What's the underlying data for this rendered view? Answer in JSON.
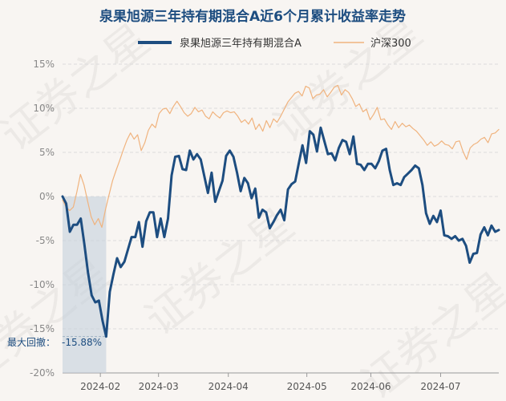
{
  "chart_data": {
    "type": "line",
    "title": "泉果旭源三年持有期混合A近6个月累计收益率走势",
    "watermark": "证券之星",
    "ylim": [
      -20,
      15
    ],
    "yticks": [
      15,
      10,
      5,
      0,
      -5,
      -10,
      -15,
      -20
    ],
    "ytick_labels": [
      "15%",
      "10%",
      "5%",
      "0%",
      "-5%",
      "-10%",
      "-15%",
      "-20%"
    ],
    "x_range": [
      0,
      150
    ],
    "xticks": [
      {
        "label": "2024-02",
        "x": 13
      },
      {
        "label": "2024-03",
        "x": 33
      },
      {
        "label": "2024-04",
        "x": 57
      },
      {
        "label": "2024-05",
        "x": 84
      },
      {
        "label": "2024-06",
        "x": 106
      },
      {
        "label": "2024-07",
        "x": 130
      }
    ],
    "annotation": {
      "label": "最大回撤：",
      "value_text": "-15.88%",
      "x_start": 0,
      "x_end": 15,
      "value": -15.88
    },
    "series": [
      {
        "name": "泉果旭源三年持有期混合A",
        "color": "#1d4d80",
        "values": [
          0,
          -0.8,
          -4,
          -3.2,
          -3.2,
          -2.5,
          -5.4,
          -8.6,
          -11.2,
          -12,
          -11.8,
          -14.1,
          -15.88,
          -10.8,
          -8.8,
          -7,
          -8,
          -7.4,
          -6,
          -4.6,
          -4.6,
          -2.9,
          -5.7,
          -2.8,
          -1.8,
          -1.8,
          -4.6,
          -2.5,
          -4.6,
          -2.5,
          2.4,
          4.5,
          4.6,
          3.1,
          3,
          5.2,
          4.2,
          4.8,
          4.2,
          2.3,
          0.4,
          2.7,
          -0.6,
          0.6,
          1.8,
          4.6,
          5.2,
          4.5,
          2.7,
          0.6,
          2.1,
          1.5,
          -0.2,
          0.9,
          -2.4,
          -1.5,
          -1.8,
          -3.6,
          -2.9,
          -2.1,
          -1.5,
          -2.7,
          0.8,
          1.4,
          1.7,
          3.8,
          5.8,
          3.8,
          7.4,
          7,
          5.1,
          7.8,
          6.3,
          4.8,
          4.9,
          4.1,
          5.5,
          6.4,
          6.2,
          4.8,
          6.8,
          3.7,
          3.6,
          3,
          3.7,
          3.7,
          3.2,
          4,
          5.2,
          5.4,
          3,
          1.3,
          1.5,
          1.3,
          2.2,
          2.6,
          3,
          3.5,
          3.2,
          1.3,
          -1.9,
          -3.1,
          -2.2,
          -2.9,
          -1.6,
          -4.4,
          -4.5,
          -4.8,
          -4.5,
          -5,
          -4.8,
          -5.6,
          -7.5,
          -6.5,
          -6.4,
          -4.3,
          -3.5,
          -4.4,
          -3.3,
          -4,
          -3.8
        ],
        "x_step": 1.05
      },
      {
        "name": "沪深300",
        "color": "#f0b37e",
        "values": [
          -0.4,
          -1.2,
          -1.6,
          -1.2,
          0.5,
          2.5,
          1.3,
          -0.5,
          -2.3,
          -3.2,
          -2.5,
          -3.5,
          -1.5,
          0.2,
          1.8,
          3,
          4.1,
          5.3,
          6.4,
          7.2,
          6.5,
          7,
          5.2,
          6.1,
          7.5,
          8.2,
          7.8,
          9.4,
          9.9,
          10,
          9.4,
          10.2,
          10.8,
          10.2,
          9.5,
          9.1,
          9.4,
          10.1,
          9.6,
          9.8,
          9.1,
          8.8,
          9.6,
          9.2,
          8.9,
          9.5,
          9.7,
          9.5,
          9.6,
          9.1,
          8.4,
          8.7,
          8.2,
          8.9,
          7.6,
          8.2,
          7.4,
          8.6,
          7.8,
          8.8,
          8.4,
          9.1,
          9.9,
          10.7,
          11.2,
          11.7,
          11.9,
          11.4,
          12.5,
          12.3,
          11.1,
          11.5,
          11.6,
          12.1,
          11.3,
          11.8,
          12.4,
          12.6,
          11.5,
          12.1,
          11.8,
          11.1,
          10.2,
          10.5,
          9.6,
          9.9,
          8.7,
          9.3,
          10.1,
          8.7,
          8.8,
          8.1,
          7.6,
          8.5,
          7.8,
          8.3,
          7.9,
          8.1,
          7.7,
          7.4,
          6.9,
          6.4,
          5.8,
          6.2,
          5.7,
          5.9,
          6.3,
          5.9,
          5.8,
          5.4,
          6.2,
          6.3,
          5.1,
          4.2,
          5.5,
          5.9,
          6.1,
          6.5,
          6.7,
          6.1,
          7.1,
          7.2,
          7.6
        ]
      }
    ]
  }
}
